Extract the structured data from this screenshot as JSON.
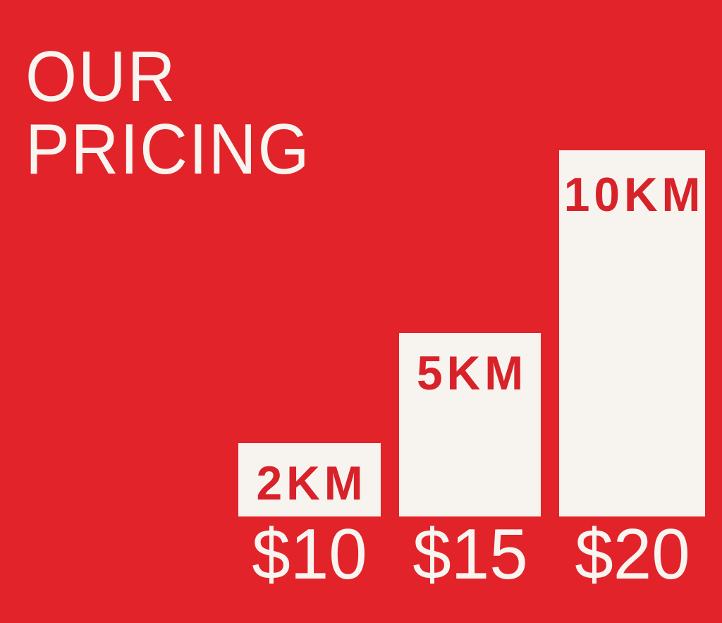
{
  "poster": {
    "background_color": "#e3232a",
    "title": {
      "line1": "OUR",
      "line2": "PRICING",
      "color": "#f8f5f1"
    }
  },
  "chart_data": {
    "type": "bar",
    "title": "OUR PRICING",
    "categories": [
      "2KM",
      "5KM",
      "10KM"
    ],
    "values": [
      2,
      5,
      10
    ],
    "unit": "km",
    "price_labels": [
      "$10",
      "$15",
      "$20"
    ],
    "prices_usd": [
      10,
      15,
      20
    ],
    "bar_color": "#f7f4f0",
    "bar_label_color": "#d8222a",
    "price_label_color": "#f8f5f1",
    "xlabel": "",
    "ylabel": "",
    "ylim": [
      0,
      10
    ],
    "grid": false,
    "legend": false,
    "orientation": "vertical",
    "note": "bar heights proportional to distance in km; price shown under each bar"
  }
}
